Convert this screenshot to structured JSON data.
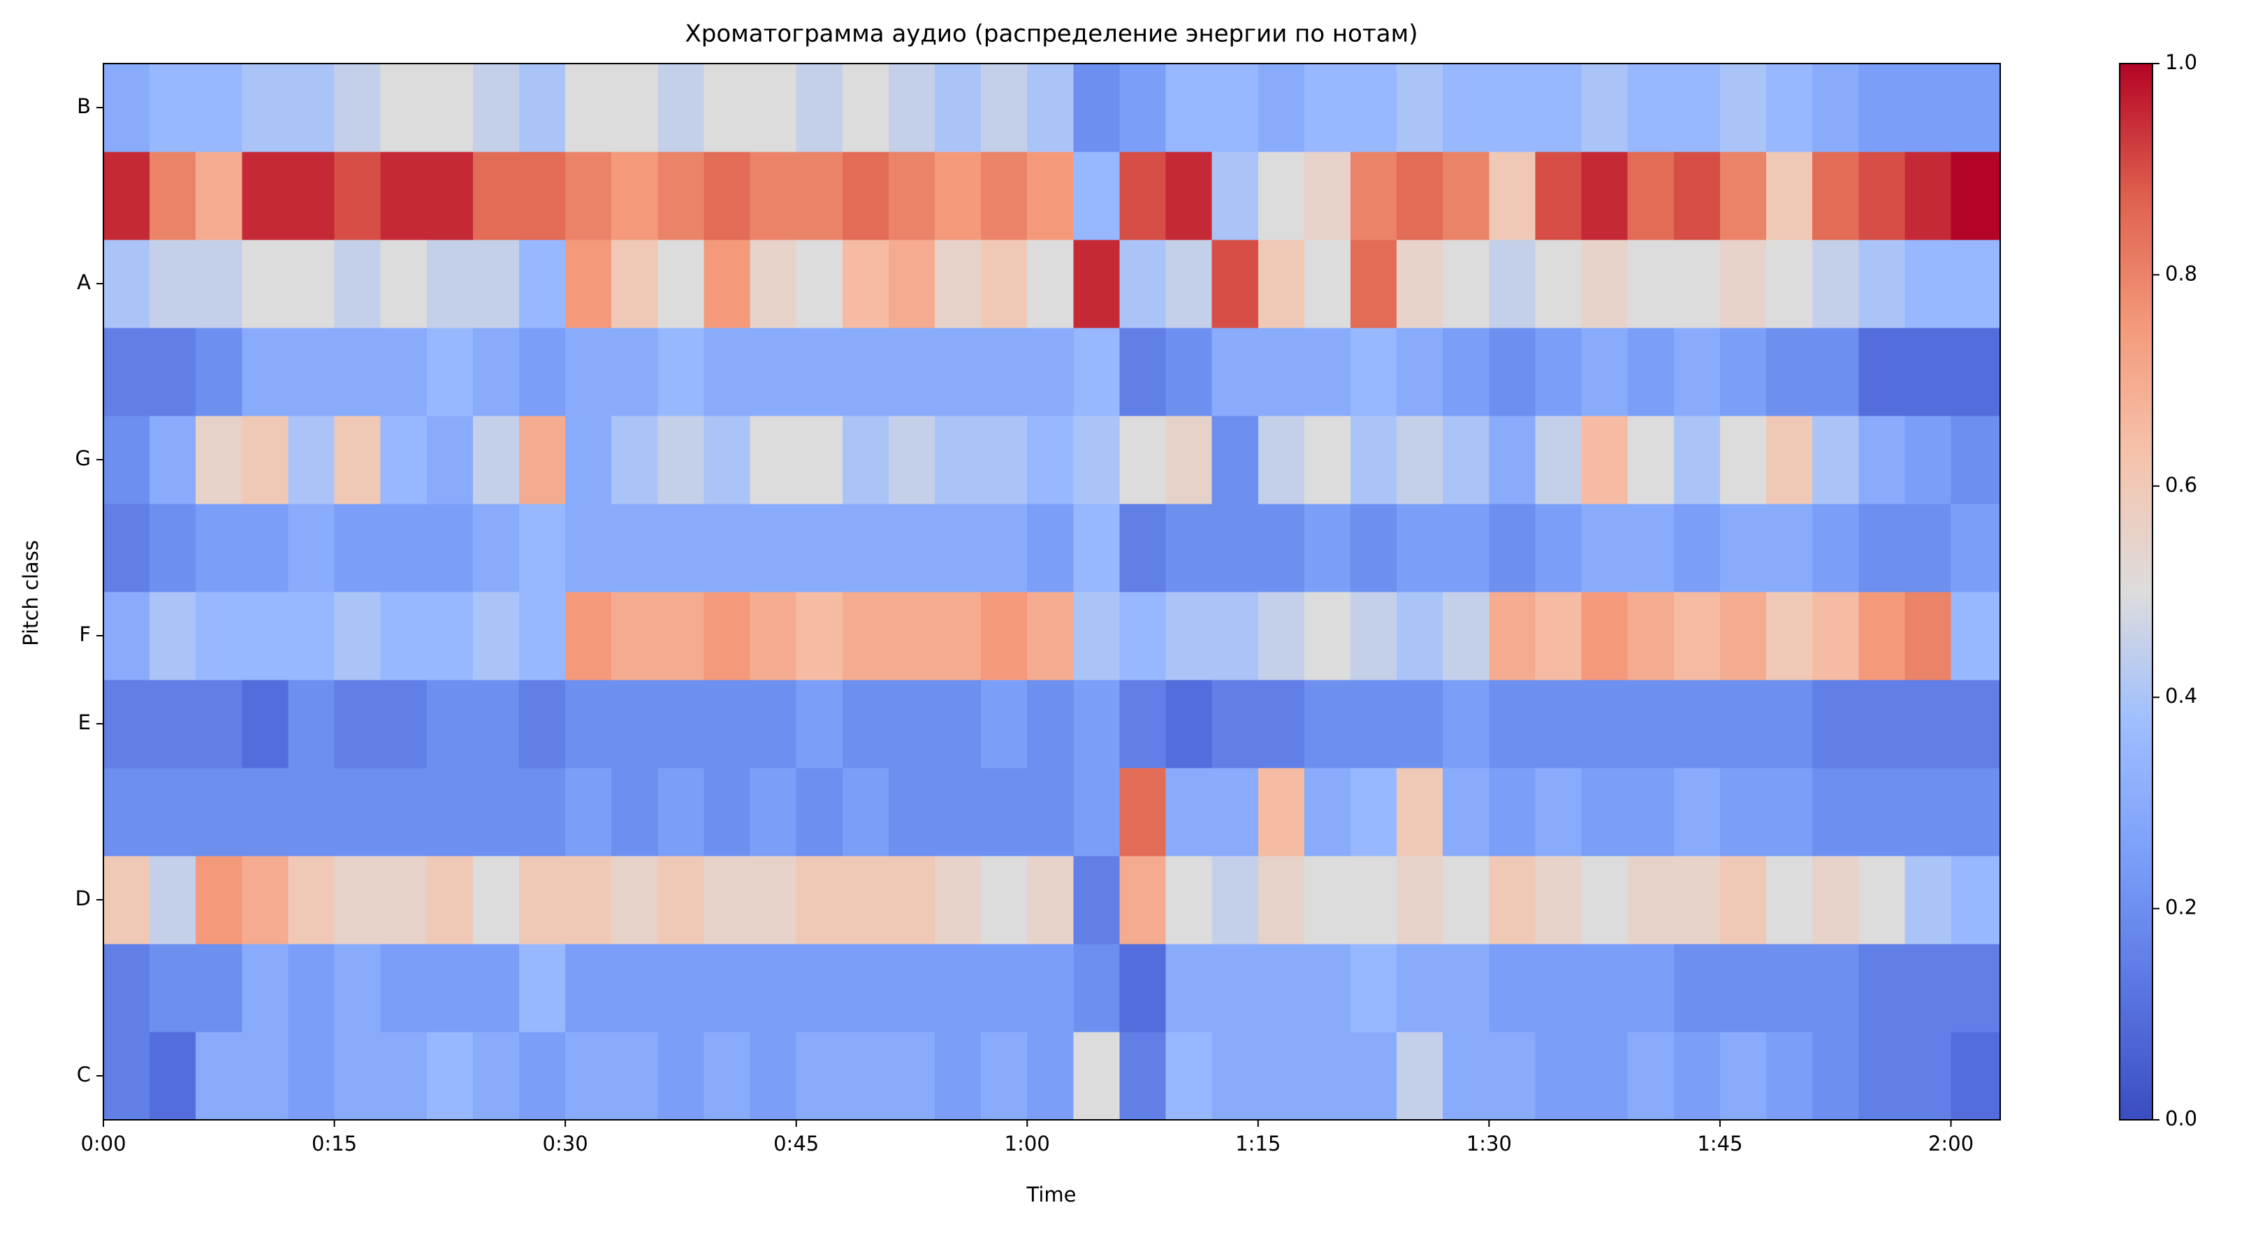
{
  "chart_data": {
    "type": "heatmap",
    "title": "Хроматограмма аудио (распределение энергии по нотам)",
    "x_label": "Time",
    "y_label": "Pitch class",
    "colormap": "coolwarm",
    "x": [
      0,
      3,
      6,
      9,
      12,
      15,
      18,
      21,
      24,
      27,
      30,
      33,
      36,
      39,
      42,
      45,
      48,
      51,
      54,
      57,
      60,
      63,
      66,
      69,
      72,
      75,
      78,
      81,
      84,
      87,
      90,
      93,
      96,
      99,
      102,
      105,
      108,
      111,
      114,
      117,
      120
    ],
    "xlim": [
      0,
      123.2
    ],
    "xticks": [
      {
        "value": 0,
        "label": "0:00"
      },
      {
        "value": 15,
        "label": "0:15"
      },
      {
        "value": 30,
        "label": "0:30"
      },
      {
        "value": 45,
        "label": "0:45"
      },
      {
        "value": 60,
        "label": "1:00"
      },
      {
        "value": 75,
        "label": "1:15"
      },
      {
        "value": 90,
        "label": "1:30"
      },
      {
        "value": 105,
        "label": "1:45"
      },
      {
        "value": 120,
        "label": "2:00"
      }
    ],
    "y_categories": [
      "C",
      null,
      "D",
      null,
      "E",
      "F",
      null,
      "G",
      null,
      "A",
      null,
      "B"
    ],
    "z": [
      [
        0.15,
        0.1,
        0.3,
        0.3,
        0.25,
        0.3,
        0.3,
        0.35,
        0.3,
        0.25,
        0.3,
        0.3,
        0.25,
        0.3,
        0.25,
        0.3,
        0.3,
        0.3,
        0.25,
        0.3,
        0.25,
        0.5,
        0.15,
        0.35,
        0.3,
        0.3,
        0.3,
        0.3,
        0.45,
        0.3,
        0.3,
        0.25,
        0.25,
        0.3,
        0.25,
        0.3,
        0.25,
        0.2,
        0.15,
        0.15,
        0.1
      ],
      [
        0.15,
        0.2,
        0.2,
        0.3,
        0.25,
        0.3,
        0.25,
        0.25,
        0.25,
        0.35,
        0.25,
        0.25,
        0.25,
        0.25,
        0.25,
        0.25,
        0.25,
        0.25,
        0.25,
        0.25,
        0.25,
        0.2,
        0.1,
        0.3,
        0.3,
        0.3,
        0.3,
        0.35,
        0.3,
        0.3,
        0.25,
        0.25,
        0.25,
        0.25,
        0.2,
        0.2,
        0.2,
        0.2,
        0.15,
        0.15,
        0.15
      ],
      [
        0.6,
        0.45,
        0.75,
        0.7,
        0.6,
        0.55,
        0.55,
        0.6,
        0.5,
        0.6,
        0.6,
        0.55,
        0.6,
        0.55,
        0.55,
        0.6,
        0.6,
        0.6,
        0.55,
        0.5,
        0.55,
        0.15,
        0.7,
        0.5,
        0.45,
        0.55,
        0.5,
        0.5,
        0.55,
        0.5,
        0.6,
        0.55,
        0.5,
        0.55,
        0.55,
        0.6,
        0.5,
        0.55,
        0.5,
        0.4,
        0.35
      ],
      [
        0.2,
        0.2,
        0.2,
        0.2,
        0.2,
        0.2,
        0.2,
        0.2,
        0.2,
        0.2,
        0.25,
        0.2,
        0.25,
        0.2,
        0.25,
        0.2,
        0.25,
        0.2,
        0.2,
        0.2,
        0.2,
        0.25,
        0.85,
        0.3,
        0.3,
        0.65,
        0.3,
        0.35,
        0.6,
        0.3,
        0.25,
        0.3,
        0.25,
        0.25,
        0.3,
        0.25,
        0.25,
        0.2,
        0.2,
        0.2,
        0.2
      ],
      [
        0.15,
        0.15,
        0.15,
        0.1,
        0.2,
        0.15,
        0.15,
        0.2,
        0.2,
        0.15,
        0.2,
        0.2,
        0.2,
        0.2,
        0.2,
        0.25,
        0.2,
        0.2,
        0.2,
        0.25,
        0.2,
        0.25,
        0.15,
        0.1,
        0.15,
        0.15,
        0.2,
        0.2,
        0.2,
        0.25,
        0.2,
        0.2,
        0.2,
        0.2,
        0.2,
        0.2,
        0.2,
        0.15,
        0.15,
        0.15,
        0.15
      ],
      [
        0.3,
        0.4,
        0.35,
        0.35,
        0.35,
        0.4,
        0.35,
        0.35,
        0.4,
        0.35,
        0.75,
        0.7,
        0.7,
        0.75,
        0.7,
        0.65,
        0.7,
        0.7,
        0.7,
        0.75,
        0.7,
        0.4,
        0.35,
        0.4,
        0.4,
        0.45,
        0.5,
        0.45,
        0.4,
        0.45,
        0.7,
        0.65,
        0.75,
        0.7,
        0.65,
        0.7,
        0.6,
        0.65,
        0.75,
        0.8,
        0.35
      ],
      [
        0.15,
        0.2,
        0.25,
        0.25,
        0.3,
        0.25,
        0.25,
        0.25,
        0.3,
        0.35,
        0.3,
        0.3,
        0.3,
        0.3,
        0.3,
        0.3,
        0.3,
        0.3,
        0.3,
        0.3,
        0.25,
        0.35,
        0.15,
        0.2,
        0.2,
        0.2,
        0.25,
        0.2,
        0.25,
        0.25,
        0.2,
        0.25,
        0.3,
        0.3,
        0.25,
        0.3,
        0.3,
        0.25,
        0.2,
        0.2,
        0.25
      ],
      [
        0.2,
        0.3,
        0.55,
        0.6,
        0.4,
        0.6,
        0.35,
        0.3,
        0.45,
        0.7,
        0.3,
        0.4,
        0.45,
        0.4,
        0.5,
        0.5,
        0.4,
        0.45,
        0.4,
        0.4,
        0.35,
        0.4,
        0.5,
        0.55,
        0.2,
        0.45,
        0.5,
        0.4,
        0.45,
        0.4,
        0.3,
        0.45,
        0.65,
        0.5,
        0.4,
        0.5,
        0.6,
        0.4,
        0.3,
        0.25,
        0.2
      ],
      [
        0.15,
        0.15,
        0.2,
        0.3,
        0.3,
        0.3,
        0.3,
        0.35,
        0.3,
        0.25,
        0.3,
        0.3,
        0.35,
        0.3,
        0.3,
        0.3,
        0.3,
        0.3,
        0.3,
        0.3,
        0.3,
        0.35,
        0.15,
        0.2,
        0.3,
        0.3,
        0.3,
        0.35,
        0.3,
        0.25,
        0.2,
        0.25,
        0.3,
        0.25,
        0.3,
        0.25,
        0.2,
        0.2,
        0.1,
        0.1,
        0.1
      ],
      [
        0.4,
        0.45,
        0.45,
        0.5,
        0.5,
        0.45,
        0.5,
        0.45,
        0.45,
        0.35,
        0.75,
        0.6,
        0.5,
        0.75,
        0.55,
        0.5,
        0.65,
        0.7,
        0.55,
        0.6,
        0.5,
        0.95,
        0.4,
        0.45,
        0.9,
        0.6,
        0.5,
        0.85,
        0.55,
        0.5,
        0.45,
        0.5,
        0.55,
        0.5,
        0.5,
        0.55,
        0.5,
        0.45,
        0.4,
        0.35,
        0.35
      ],
      [
        0.95,
        0.8,
        0.7,
        0.95,
        0.95,
        0.9,
        0.95,
        0.95,
        0.85,
        0.85,
        0.8,
        0.75,
        0.8,
        0.85,
        0.8,
        0.8,
        0.85,
        0.8,
        0.75,
        0.8,
        0.75,
        0.35,
        0.9,
        0.95,
        0.4,
        0.5,
        0.55,
        0.8,
        0.85,
        0.8,
        0.6,
        0.9,
        0.95,
        0.85,
        0.9,
        0.8,
        0.6,
        0.85,
        0.9,
        0.95,
        1.0
      ],
      [
        0.3,
        0.35,
        0.35,
        0.4,
        0.4,
        0.45,
        0.5,
        0.5,
        0.45,
        0.4,
        0.5,
        0.5,
        0.45,
        0.5,
        0.5,
        0.45,
        0.5,
        0.45,
        0.4,
        0.45,
        0.4,
        0.2,
        0.25,
        0.35,
        0.35,
        0.3,
        0.35,
        0.35,
        0.4,
        0.35,
        0.35,
        0.35,
        0.4,
        0.35,
        0.35,
        0.4,
        0.35,
        0.3,
        0.25,
        0.25,
        0.25
      ]
    ],
    "clim": [
      0,
      1
    ],
    "cticks": [
      {
        "value": 0,
        "label": "0.0"
      },
      {
        "value": 0.2,
        "label": "0.2"
      },
      {
        "value": 0.4,
        "label": "0.4"
      },
      {
        "value": 0.6,
        "label": "0.6"
      },
      {
        "value": 0.8,
        "label": "0.8"
      },
      {
        "value": 1,
        "label": "1.0"
      }
    ]
  }
}
